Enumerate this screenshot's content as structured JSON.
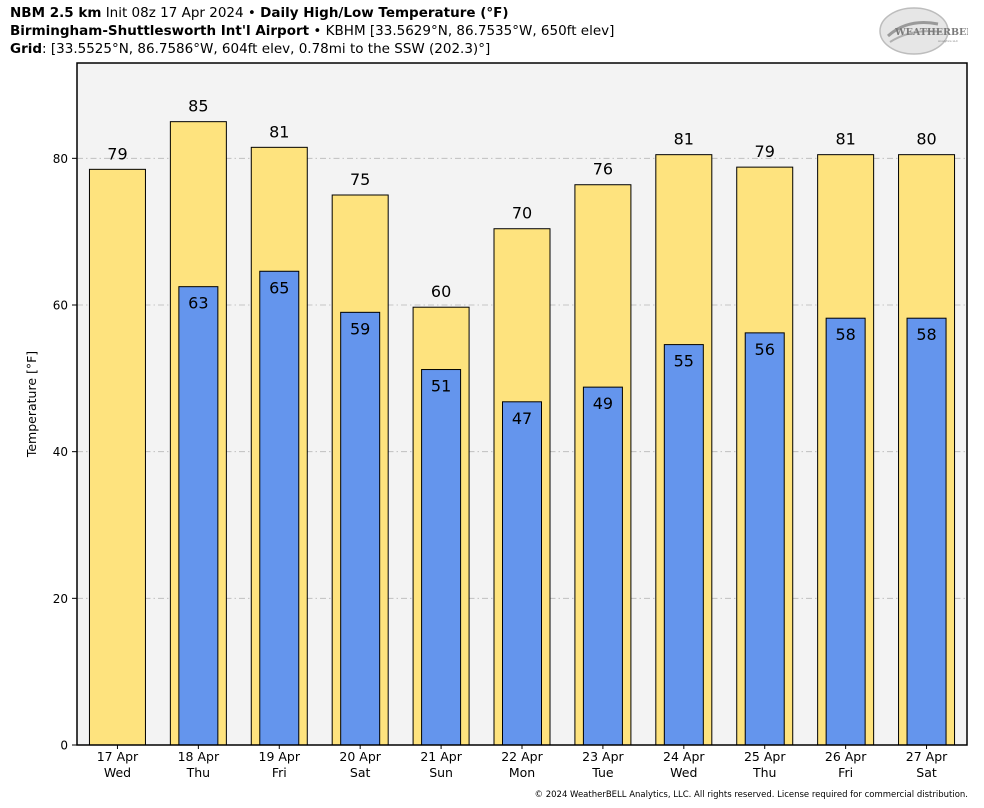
{
  "header": {
    "line1": {
      "model": "NBM 2.5 km",
      "init": "Init 08z 17 Apr 2024",
      "sep": "•",
      "product": "Daily High/Low Temperature (°F)"
    },
    "line2": {
      "station": "Birmingham-Shuttlesworth Int'l Airport",
      "sep": "•",
      "details": "KBHM [33.5629°N, 86.7535°W, 650ft elev]"
    },
    "line3": {
      "label": "Grid",
      "details": ": [33.5525°N, 86.7586°W, 604ft elev, 0.78mi to the SSW (202.3)°]"
    }
  },
  "logo": {
    "text_big": "WEATHERBELL",
    "text_small": "Analytics LLC"
  },
  "copyright": "© 2024 WeatherBELL Analytics, LLC. All rights reserved. License required for commercial distribution.",
  "chart_data": {
    "type": "bar",
    "ylabel": "Temperature [°F]",
    "ylim": [
      0,
      93
    ],
    "yticks": [
      "0",
      "20",
      "40",
      "60",
      "80"
    ],
    "grid": true,
    "categories": [
      {
        "date": "17 Apr",
        "day": "Wed"
      },
      {
        "date": "18 Apr",
        "day": "Thu"
      },
      {
        "date": "19 Apr",
        "day": "Fri"
      },
      {
        "date": "20 Apr",
        "day": "Sat"
      },
      {
        "date": "21 Apr",
        "day": "Sun"
      },
      {
        "date": "22 Apr",
        "day": "Mon"
      },
      {
        "date": "23 Apr",
        "day": "Tue"
      },
      {
        "date": "24 Apr",
        "day": "Wed"
      },
      {
        "date": "25 Apr",
        "day": "Thu"
      },
      {
        "date": "26 Apr",
        "day": "Fri"
      },
      {
        "date": "27 Apr",
        "day": "Sat"
      }
    ],
    "series": [
      {
        "color": "#fee37e",
        "values": [
          78.5,
          85,
          81.5,
          75,
          59.7,
          70.4,
          76.4,
          80.5,
          78.8,
          80.5,
          80.5
        ],
        "labels": [
          "79",
          "85",
          "81",
          "75",
          "60",
          "70",
          "76",
          "81",
          "79",
          "81",
          "80"
        ]
      },
      {
        "color": "#6495ed",
        "values": [
          null,
          62.5,
          64.6,
          59,
          51.2,
          46.8,
          48.8,
          54.6,
          56.2,
          58.2,
          58.2
        ],
        "labels": [
          "",
          "63",
          "65",
          "59",
          "51",
          "47",
          "49",
          "55",
          "56",
          "58",
          "58"
        ]
      }
    ],
    "plot_background": "#f3f3f3"
  }
}
